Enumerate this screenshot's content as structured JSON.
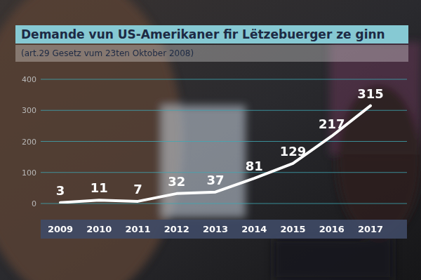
{
  "chart_data": {
    "type": "line",
    "title": "Demande vun US-Amerikaner fir Lëtzebuerger ze ginn",
    "subtitle": "(art.29 Gesetz vum 23ten Oktober 2008)",
    "categories": [
      "2009",
      "2010",
      "2011",
      "2012",
      "2013",
      "2014",
      "2015",
      "2016",
      "2017"
    ],
    "values": [
      3,
      11,
      7,
      32,
      37,
      81,
      129,
      217,
      315
    ],
    "color": "#ffffff",
    "ylim": [
      0,
      400
    ],
    "yticks": [
      0,
      100,
      200,
      300,
      400
    ],
    "grid": true,
    "data_labels": true
  }
}
